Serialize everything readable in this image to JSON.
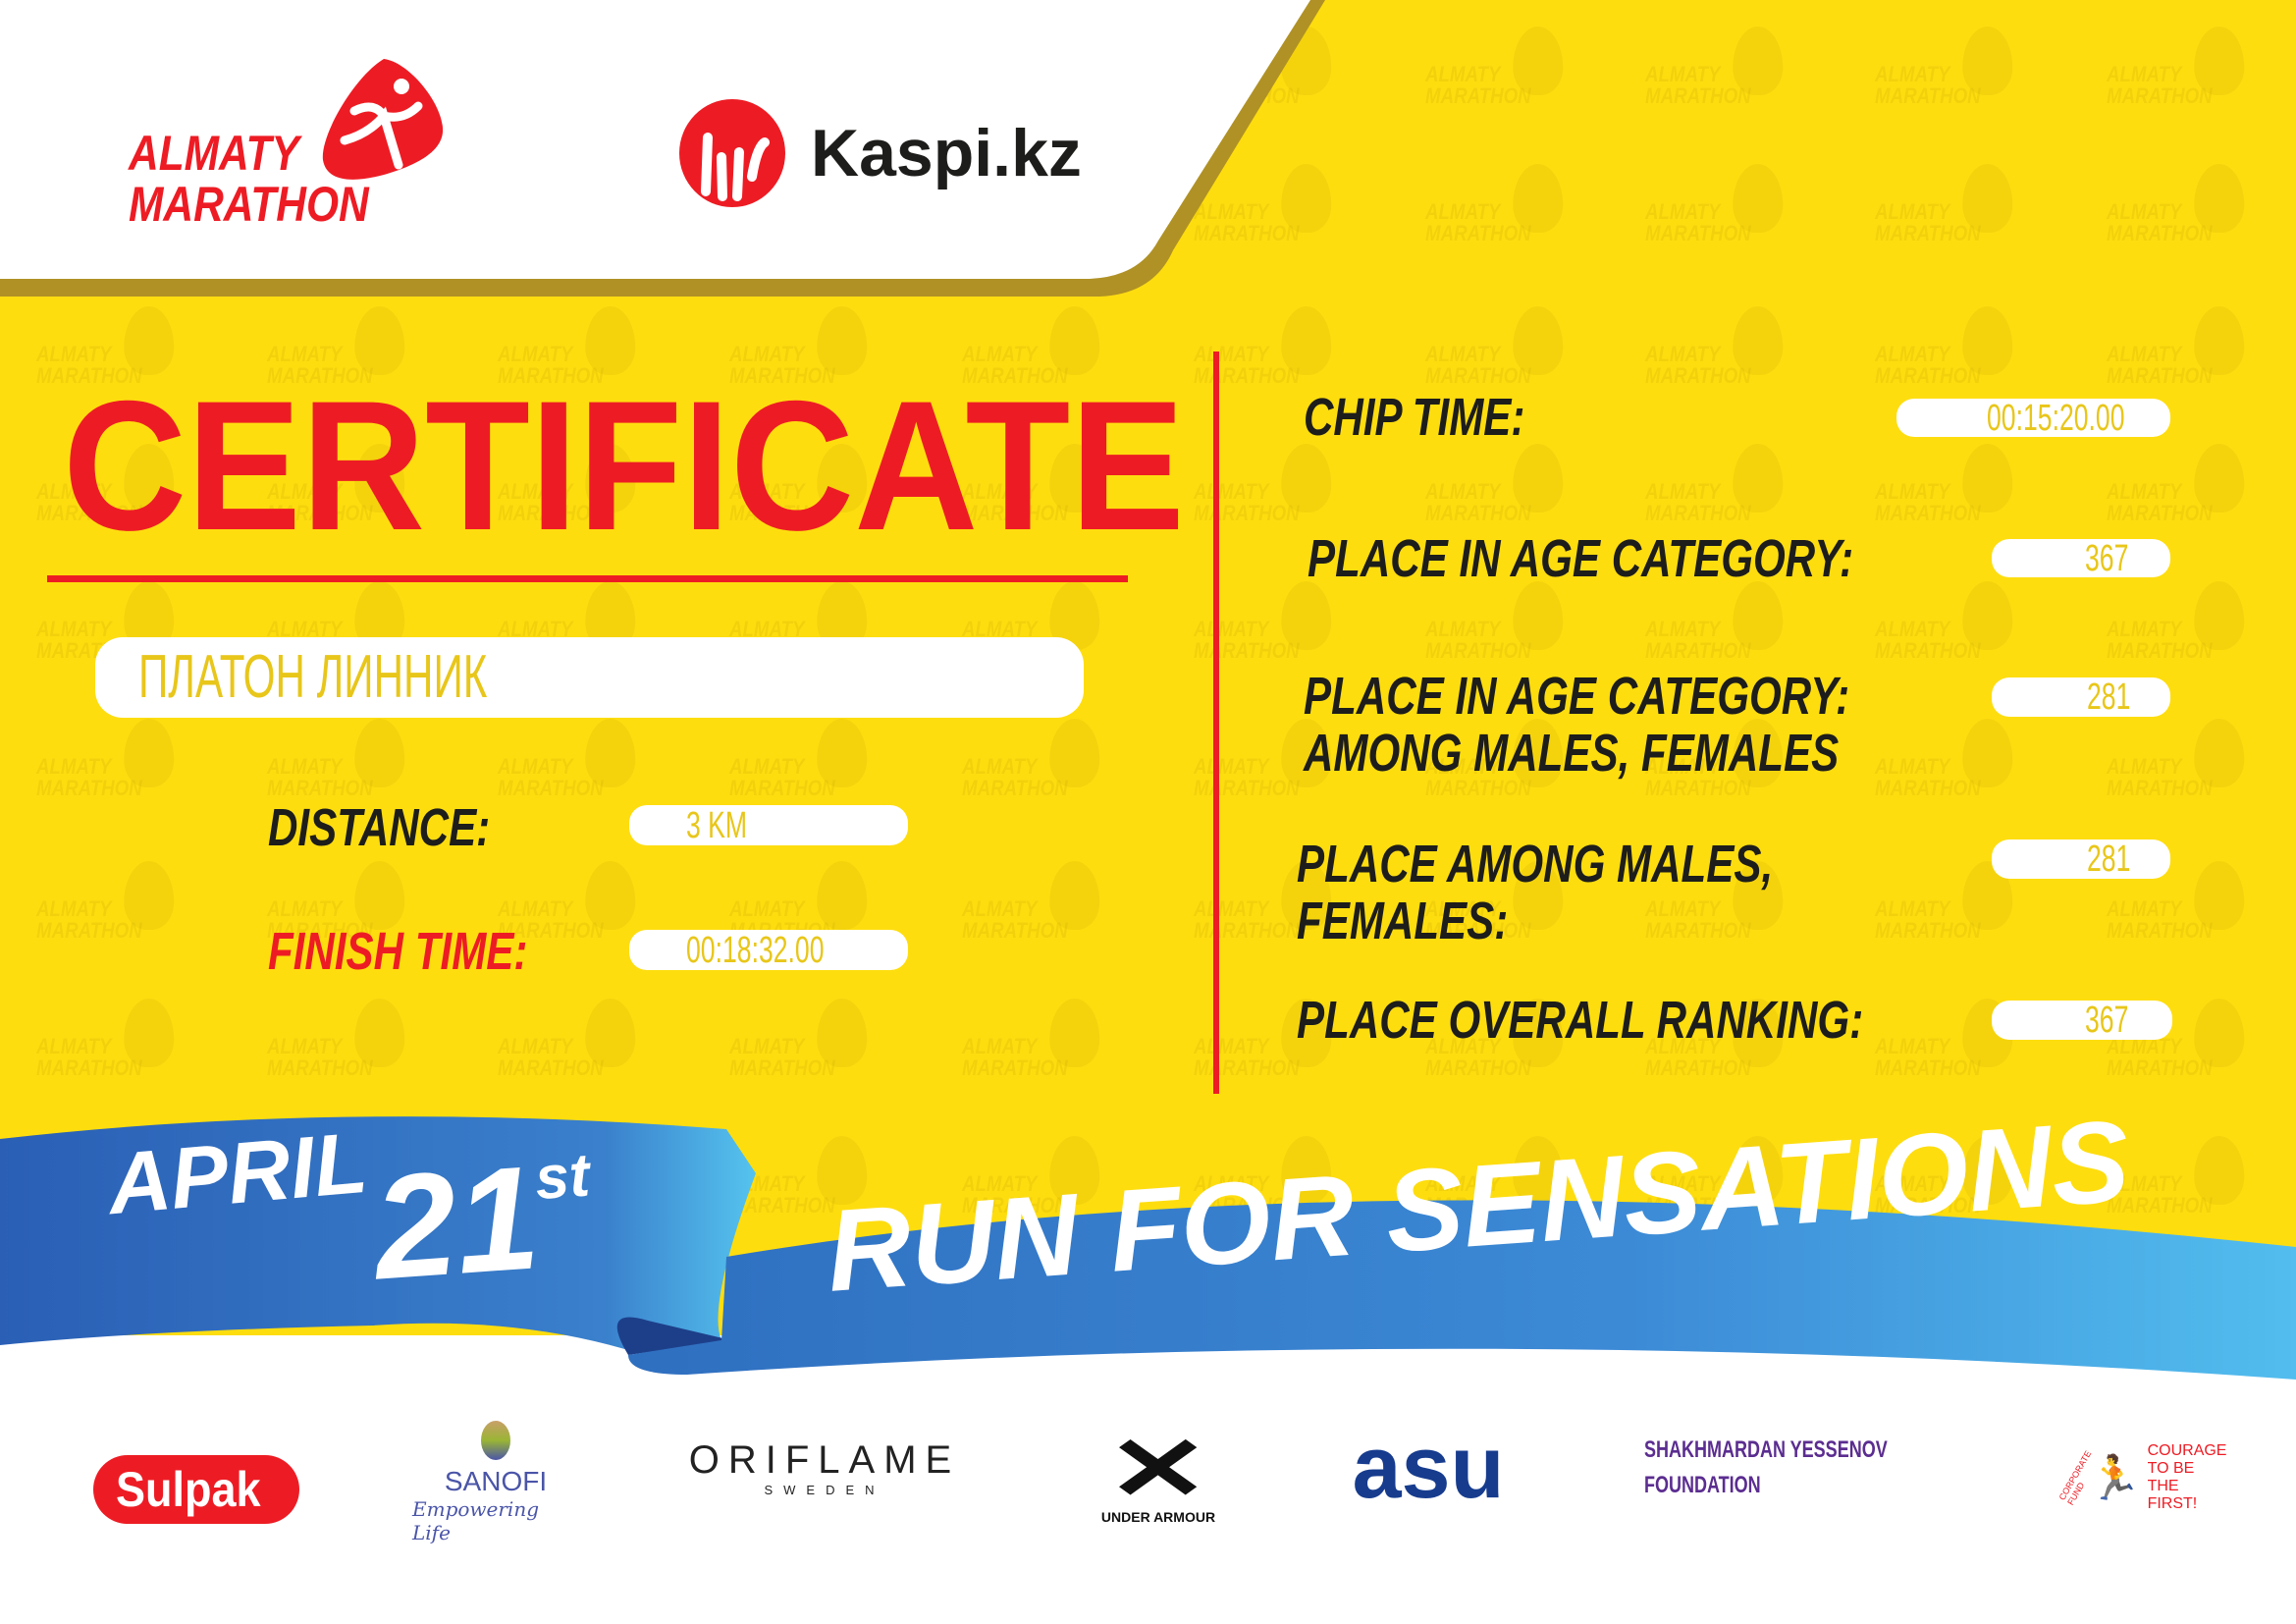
{
  "header": {
    "event_logo_line1": "ALMATY",
    "event_logo_line2": "MARATHON",
    "partner_logo": "Kaspi.kz"
  },
  "watermark": {
    "line1": "ALMATY",
    "line2": "MARATHON"
  },
  "certificate": {
    "title": "CERTIFICATE",
    "participant_name": "ПЛАТОН ЛИННИК",
    "distance_label": "DISTANCE:",
    "distance_value": "3 KM",
    "finish_time_label": "FINISH TIME:",
    "finish_time_value": "00:18:32.00"
  },
  "results": {
    "chip_time_label": "CHIP TIME:",
    "chip_time_value": "00:15:20.00",
    "age_category_label": "PLACE IN AGE CATEGORY:",
    "age_category_value": "367",
    "age_category_gender_label_1": "PLACE IN AGE CATEGORY:",
    "age_category_gender_label_2": "AMONG MALES, FEMALES",
    "age_category_gender_value": "281",
    "gender_label_1": "PLACE AMONG MALES,",
    "gender_label_2": "FEMALES:",
    "gender_value": "281",
    "overall_label": "PLACE OVERALL RANKING:",
    "overall_value": "367"
  },
  "banner": {
    "month": "APRIL",
    "day": "21",
    "suffix": "st",
    "slogan": "RUN FOR SENSATIONS"
  },
  "sponsors": {
    "sulpak": "Sulpak",
    "sanofi": "SANOFI",
    "sanofi_tagline": "Empowering Life",
    "oriflame": "ORIFLAME",
    "oriflame_sub": "SWEDEN",
    "under_armour": "UNDER ARMOUR",
    "asu": "asu",
    "yessenov_1": "SHAKHMARDAN YESSENOV",
    "yessenov_2": "FOUNDATION",
    "courage_arc": "CORPORATE FUND",
    "courage_1": "COURAGE",
    "courage_2": "TO BE",
    "courage_3": "THE FIRST!"
  },
  "colors": {
    "yellow": "#FEDD0F",
    "red": "#ED1C24",
    "blue": "#2F6FC0",
    "light_blue": "#4FC0EE",
    "gold": "#B09125"
  }
}
